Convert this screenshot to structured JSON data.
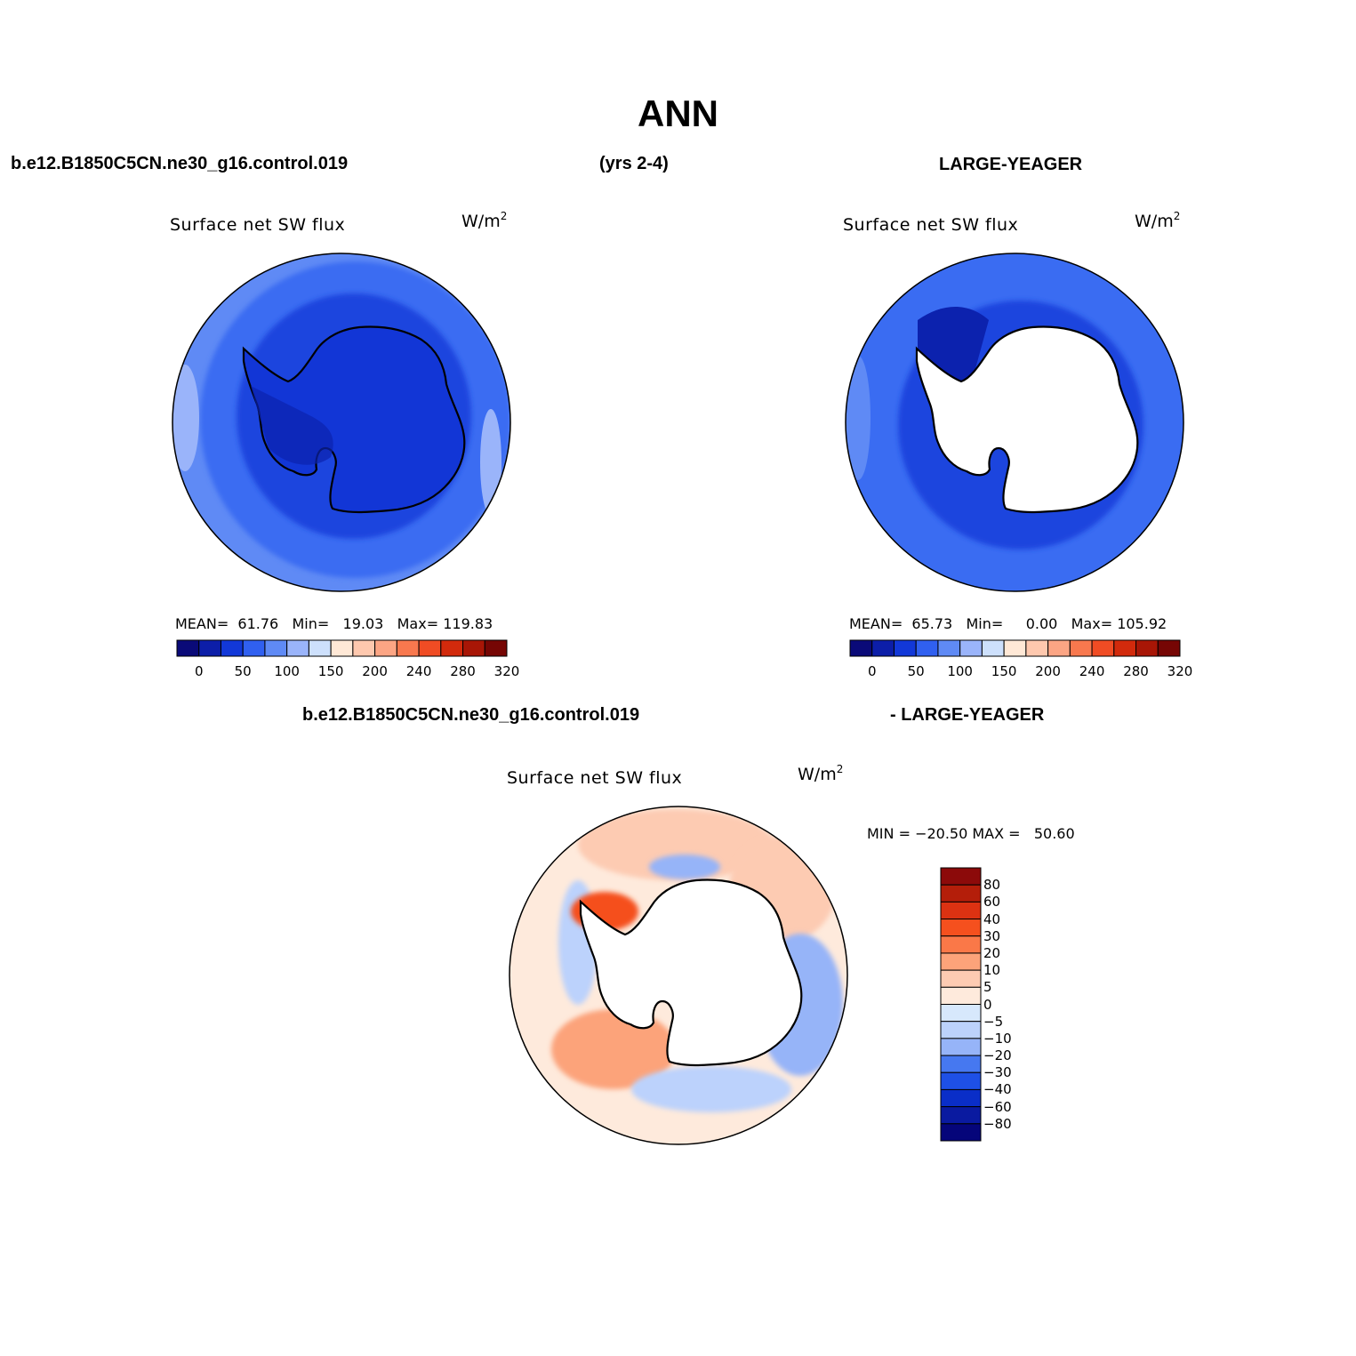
{
  "figure": {
    "title": "ANN",
    "header_left": "b.e12.B1850C5CN.ne30_g16.control.019",
    "header_center": "(yrs 2-4)",
    "header_right": "LARGE-YEAGER",
    "diff_header_left": "b.e12.B1850C5CN.ne30_g16.control.019",
    "diff_header_right": "- LARGE-YEAGER"
  },
  "chart_data": [
    {
      "type": "heatmap",
      "projection": "south-polar-stereographic",
      "title": "Surface net SW flux",
      "units": "W/m",
      "units_sup": "2",
      "stats": {
        "mean_label": "MEAN=",
        "mean": "61.76",
        "min_label": "Min=",
        "min": "19.03",
        "max_label": "Max=",
        "max": "119.83"
      },
      "colorbar": {
        "orientation": "horizontal",
        "colors": [
          "#0a0a78",
          "#0c1ea8",
          "#1238d8",
          "#3060f0",
          "#5f8af5",
          "#9ab4fa",
          "#cde0fc",
          "#ffe8d6",
          "#fec8ae",
          "#fca584",
          "#f8784e",
          "#f04c24",
          "#d22a0c",
          "#a81606",
          "#760604"
        ],
        "tick_labels": [
          "0",
          "50",
          "100",
          "150",
          "200",
          "240",
          "280",
          "320"
        ]
      },
      "value_range": [
        19.03,
        119.83
      ],
      "mean": 61.76
    },
    {
      "type": "heatmap",
      "projection": "south-polar-stereographic",
      "title": "Surface net SW flux",
      "units": "W/m",
      "units_sup": "2",
      "stats": {
        "mean_label": "MEAN=",
        "mean": "65.73",
        "min_label": "Min=",
        "min": "0.00",
        "max_label": "Max=",
        "max": "105.92"
      },
      "colorbar": {
        "orientation": "horizontal",
        "colors": [
          "#0a0a78",
          "#0c1ea8",
          "#1238d8",
          "#3060f0",
          "#5f8af5",
          "#9ab4fa",
          "#cde0fc",
          "#ffe8d6",
          "#fec8ae",
          "#fca584",
          "#f8784e",
          "#f04c24",
          "#d22a0c",
          "#a81606",
          "#760604"
        ],
        "tick_labels": [
          "0",
          "50",
          "100",
          "150",
          "200",
          "240",
          "280",
          "320"
        ]
      },
      "value_range": [
        0.0,
        105.92
      ],
      "mean": 65.73
    },
    {
      "type": "heatmap",
      "projection": "south-polar-stereographic",
      "title": "Surface net SW flux",
      "units": "W/m",
      "units_sup": "2",
      "minmax": "MIN = −20.50 MAX =   50.60",
      "colorbar": {
        "orientation": "vertical",
        "colors_top_to_bottom": [
          "#8c0a0a",
          "#b41e0a",
          "#dc3212",
          "#f5501e",
          "#fa7848",
          "#fca37a",
          "#fdcbb2",
          "#feeadc",
          "#d7e8fc",
          "#bcd2fc",
          "#96b4f8",
          "#4678f0",
          "#1e50e6",
          "#0a2ec8",
          "#0a1aa0",
          "#05057a"
        ],
        "tick_labels_top_to_bottom": [
          "80",
          "60",
          "40",
          "30",
          "20",
          "10",
          "5",
          "0",
          "−5",
          "−10",
          "−20",
          "−30",
          "−40",
          "−60",
          "−80"
        ]
      },
      "value_range": [
        -20.5,
        50.6
      ]
    }
  ]
}
